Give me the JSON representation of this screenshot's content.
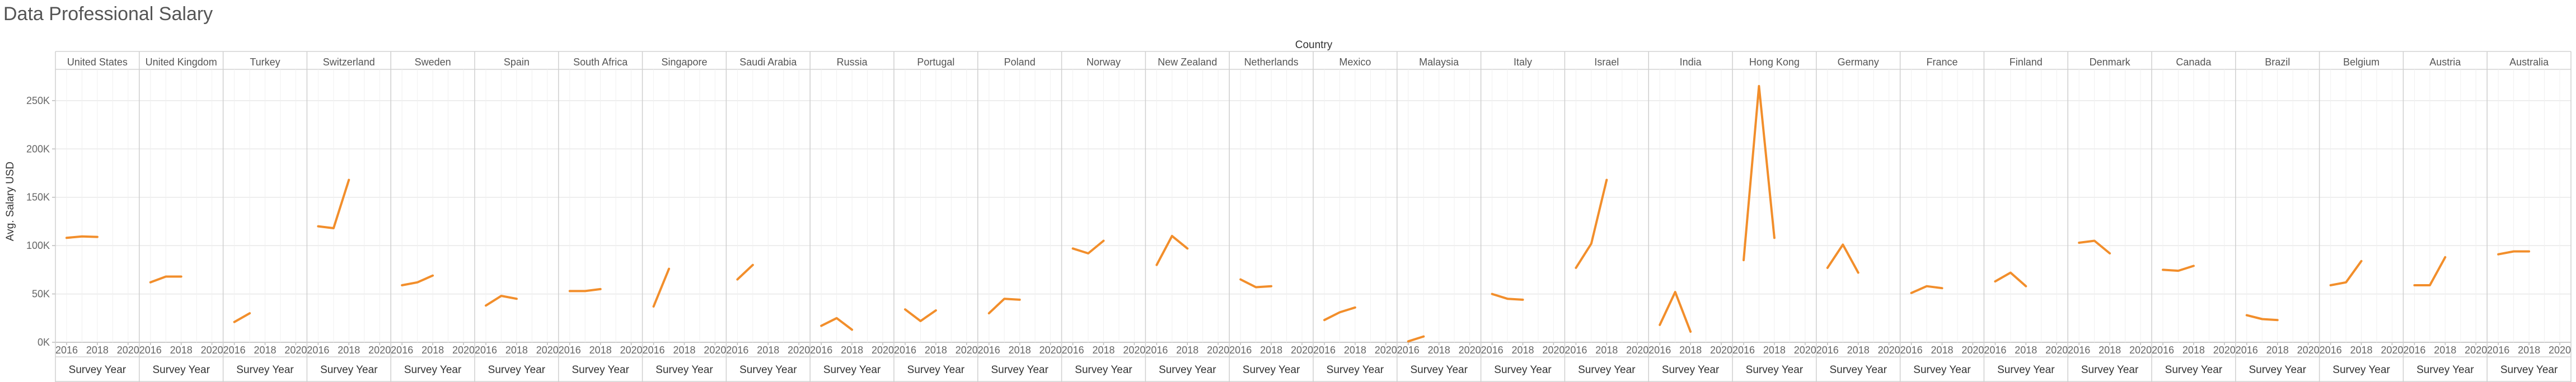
{
  "chart_data": {
    "type": "line",
    "title": "Data Professional Salary",
    "column_header": "Country",
    "ylabel": "Avg. Salary USD",
    "xlabel": "Survey Year",
    "x": [
      2016,
      2017,
      2018,
      2019,
      2020
    ],
    "x_tick_labels": [
      "2016",
      "2018",
      "2020"
    ],
    "x_tick_values": [
      2016,
      2018,
      2020
    ],
    "ylim": [
      0,
      280000
    ],
    "y_ticks": [
      {
        "value": 0,
        "label": "0K"
      },
      {
        "value": 50000,
        "label": "50K"
      },
      {
        "value": 100000,
        "label": "100K"
      },
      {
        "value": 150000,
        "label": "150K"
      },
      {
        "value": 200000,
        "label": "200K"
      },
      {
        "value": 250000,
        "label": "250K"
      }
    ],
    "grid": true,
    "line_color": "#f28e2b",
    "panels": [
      {
        "country": "United States",
        "points": [
          [
            2016,
            108000
          ],
          [
            2017,
            109500
          ],
          [
            2018,
            109000
          ]
        ]
      },
      {
        "country": "United Kingdom",
        "points": [
          [
            2016,
            62000
          ],
          [
            2017,
            68000
          ],
          [
            2018,
            68000
          ]
        ]
      },
      {
        "country": "Turkey",
        "points": [
          [
            2016,
            21000
          ],
          [
            2017,
            30000
          ]
        ]
      },
      {
        "country": "Switzerland",
        "points": [
          [
            2016,
            120000
          ],
          [
            2017,
            118000
          ],
          [
            2018,
            168000
          ]
        ]
      },
      {
        "country": "Sweden",
        "points": [
          [
            2016,
            59000
          ],
          [
            2017,
            62000
          ],
          [
            2018,
            69000
          ]
        ]
      },
      {
        "country": "Spain",
        "points": [
          [
            2016,
            38000
          ],
          [
            2017,
            48000
          ],
          [
            2018,
            45000
          ]
        ]
      },
      {
        "country": "South Africa",
        "points": [
          [
            2016,
            53000
          ],
          [
            2017,
            53000
          ],
          [
            2018,
            55000
          ]
        ]
      },
      {
        "country": "Singapore",
        "points": [
          [
            2016,
            37000
          ],
          [
            2017,
            76000
          ]
        ]
      },
      {
        "country": "Saudi Arabia",
        "points": [
          [
            2016,
            65000
          ],
          [
            2017,
            80000
          ]
        ]
      },
      {
        "country": "Russia",
        "points": [
          [
            2016,
            17000
          ],
          [
            2017,
            25000
          ],
          [
            2018,
            13000
          ]
        ]
      },
      {
        "country": "Portugal",
        "points": [
          [
            2016,
            34000
          ],
          [
            2017,
            22000
          ],
          [
            2018,
            33000
          ]
        ]
      },
      {
        "country": "Poland",
        "points": [
          [
            2016,
            30000
          ],
          [
            2017,
            45000
          ],
          [
            2018,
            44000
          ]
        ]
      },
      {
        "country": "Norway",
        "points": [
          [
            2016,
            97000
          ],
          [
            2017,
            92000
          ],
          [
            2018,
            105000
          ]
        ]
      },
      {
        "country": "New Zealand",
        "points": [
          [
            2016,
            80000
          ],
          [
            2017,
            110000
          ],
          [
            2018,
            97000
          ]
        ]
      },
      {
        "country": "Netherlands",
        "points": [
          [
            2016,
            65000
          ],
          [
            2017,
            57000
          ],
          [
            2018,
            58000
          ]
        ]
      },
      {
        "country": "Mexico",
        "points": [
          [
            2016,
            23000
          ],
          [
            2017,
            31000
          ],
          [
            2018,
            36000
          ]
        ]
      },
      {
        "country": "Malaysia",
        "points": [
          [
            2016,
            1000
          ],
          [
            2017,
            6000
          ]
        ]
      },
      {
        "country": "Italy",
        "points": [
          [
            2016,
            50000
          ],
          [
            2017,
            45000
          ],
          [
            2018,
            44000
          ]
        ]
      },
      {
        "country": "Israel",
        "points": [
          [
            2016,
            77000
          ],
          [
            2017,
            102000
          ],
          [
            2018,
            168000
          ]
        ]
      },
      {
        "country": "India",
        "points": [
          [
            2016,
            18000
          ],
          [
            2017,
            52000
          ],
          [
            2018,
            11000
          ]
        ]
      },
      {
        "country": "Hong Kong",
        "points": [
          [
            2016,
            85000
          ],
          [
            2017,
            265000
          ],
          [
            2018,
            108000
          ]
        ]
      },
      {
        "country": "Germany",
        "points": [
          [
            2016,
            77000
          ],
          [
            2017,
            101000
          ],
          [
            2018,
            72000
          ]
        ]
      },
      {
        "country": "France",
        "points": [
          [
            2016,
            51000
          ],
          [
            2017,
            58000
          ],
          [
            2018,
            56000
          ]
        ]
      },
      {
        "country": "Finland",
        "points": [
          [
            2016,
            63000
          ],
          [
            2017,
            72000
          ],
          [
            2018,
            58000
          ]
        ]
      },
      {
        "country": "Denmark",
        "points": [
          [
            2016,
            103000
          ],
          [
            2017,
            105000
          ],
          [
            2018,
            92000
          ]
        ]
      },
      {
        "country": "Canada",
        "points": [
          [
            2016,
            75000
          ],
          [
            2017,
            74000
          ],
          [
            2018,
            79000
          ]
        ]
      },
      {
        "country": "Brazil",
        "points": [
          [
            2016,
            28000
          ],
          [
            2017,
            24000
          ],
          [
            2018,
            23000
          ]
        ]
      },
      {
        "country": "Belgium",
        "points": [
          [
            2016,
            59000
          ],
          [
            2017,
            62000
          ],
          [
            2018,
            84000
          ]
        ]
      },
      {
        "country": "Austria",
        "points": [
          [
            2016,
            59000
          ],
          [
            2017,
            59000
          ],
          [
            2018,
            88000
          ]
        ]
      },
      {
        "country": "Australia",
        "points": [
          [
            2016,
            91000
          ],
          [
            2017,
            94000
          ],
          [
            2018,
            94000
          ]
        ]
      }
    ]
  }
}
